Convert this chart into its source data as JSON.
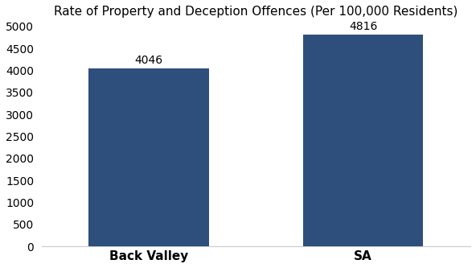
{
  "categories": [
    "Back Valley",
    "SA"
  ],
  "values": [
    4046,
    4816
  ],
  "bar_colors": [
    "#2e4f7c",
    "#2e4f7c"
  ],
  "bar_labels": [
    "4046",
    "4816"
  ],
  "title": "Rate of Property and Deception Offences (Per 100,000 Residents)",
  "title_fontsize": 11,
  "label_fontsize": 10,
  "tick_fontsize": 10,
  "xtick_fontsize": 11,
  "ylim": [
    0,
    5000
  ],
  "yticks": [
    0,
    500,
    1000,
    1500,
    2000,
    2500,
    3000,
    3500,
    4000,
    4500,
    5000
  ],
  "background_color": "#ffffff",
  "bar_width": 0.28,
  "bar_positions": [
    0.25,
    0.75
  ]
}
